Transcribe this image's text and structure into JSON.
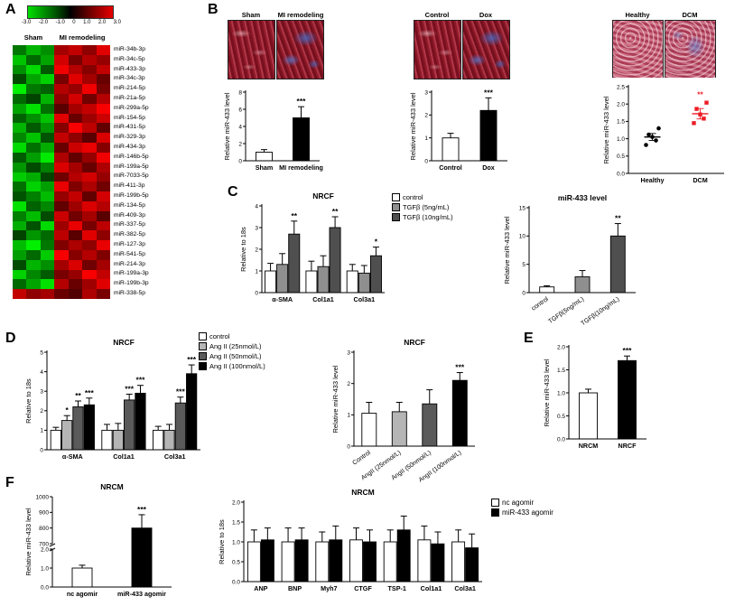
{
  "panels": {
    "A": "A",
    "B": "B",
    "C": "C",
    "D": "D",
    "E": "E",
    "F": "F"
  },
  "panelA": {
    "colorbar_ticks": [
      "-3.0",
      "-2.0",
      "-1.0",
      "0",
      "1.0",
      "2.0",
      "3.0"
    ],
    "col_groups": [
      "Sham",
      "MI remodeling"
    ],
    "row_labels": [
      "miR-34b-3p",
      "miR-34c-5p",
      "miR-433-3p",
      "miR-34c-3p",
      "miR-214-5p",
      "miR-21a-5p",
      "miR-299a-5p",
      "miR-154-5p",
      "miR-431-5p",
      "miR-329-3p",
      "miR-434-3p",
      "miR-146b-5p",
      "miR-199a-5p",
      "miR-7033-5p",
      "miR-411-3p",
      "miR-199b-5p",
      "miR-134-5p",
      "miR-409-3p",
      "miR-337-5p",
      "miR-382-5p",
      "miR-127-3p",
      "miR-541-5p",
      "miR-214-3p",
      "miR-199a-3p",
      "miR-199b-3p",
      "miR-338-5p"
    ],
    "matrix": [
      [
        -1.2,
        -2.0,
        -1.5,
        1.8,
        2.2,
        1.5,
        2.6
      ],
      [
        -2.2,
        -1.0,
        -1.8,
        2.4,
        1.2,
        2.0,
        1.6
      ],
      [
        -1.5,
        -2.5,
        -0.8,
        2.8,
        2.0,
        1.4,
        2.2
      ],
      [
        -0.6,
        -1.8,
        -2.4,
        1.2,
        2.6,
        1.8,
        1.0
      ],
      [
        -2.8,
        -1.2,
        -0.9,
        2.0,
        1.6,
        2.8,
        1.2
      ],
      [
        -1.0,
        -0.5,
        -2.0,
        1.5,
        2.4,
        1.1,
        2.0
      ],
      [
        -1.8,
        -2.6,
        -1.1,
        0.8,
        1.8,
        2.2,
        2.9
      ],
      [
        -0.9,
        -1.5,
        -2.2,
        2.6,
        1.0,
        1.7,
        2.3
      ],
      [
        -2.0,
        -0.8,
        -1.6,
        1.4,
        2.9,
        2.1,
        0.9
      ],
      [
        -1.4,
        -2.2,
        -0.7,
        2.2,
        1.5,
        0.8,
        2.5
      ],
      [
        -2.5,
        -1.1,
        -1.9,
        1.0,
        2.3,
        2.7,
        1.4
      ],
      [
        -0.8,
        -1.7,
        -2.7,
        1.9,
        0.9,
        1.6,
        2.8
      ],
      [
        -1.6,
        -0.6,
        -1.3,
        2.5,
        1.8,
        1.0,
        1.9
      ],
      [
        -2.3,
        -1.9,
        -0.5,
        1.1,
        2.0,
        2.4,
        1.6
      ],
      [
        -1.1,
        -2.4,
        -1.7,
        2.7,
        1.3,
        1.9,
        1.1
      ],
      [
        -0.7,
        -1.3,
        -2.1,
        1.6,
        2.2,
        0.9,
        2.4
      ],
      [
        -2.6,
        -0.9,
        -1.4,
        0.9,
        1.7,
        2.5,
        2.0
      ],
      [
        -1.3,
        -2.1,
        -0.6,
        2.3,
        1.1,
        1.8,
        0.8
      ],
      [
        -1.9,
        -0.7,
        -2.5,
        1.7,
        2.7,
        1.2,
        2.1
      ],
      [
        -0.5,
        -1.6,
        -1.0,
        2.1,
        0.8,
        2.6,
        1.5
      ],
      [
        -2.1,
        -2.8,
        -1.2,
        1.3,
        1.9,
        1.5,
        2.7
      ],
      [
        -1.7,
        -1.0,
        -2.3,
        2.9,
        1.4,
        2.0,
        1.3
      ],
      [
        -0.6,
        -2.0,
        -1.5,
        1.8,
        2.5,
        1.1,
        1.8
      ],
      [
        -2.4,
        -1.4,
        -0.8,
        1.2,
        1.6,
        2.9,
        2.2
      ],
      [
        -1.0,
        -1.8,
        -2.6,
        2.0,
        1.0,
        1.7,
        2.6
      ],
      [
        2.2,
        1.5,
        1.8,
        1.0,
        0.7,
        1.9,
        1.2
      ]
    ]
  },
  "panelB": {
    "groups": [
      [
        "Sham",
        "MI remodeling"
      ],
      [
        "Control",
        "Dox"
      ],
      [
        "Healthy",
        "DCM"
      ]
    ]
  },
  "legends": {
    "C": [
      {
        "label": "control",
        "color": "#ffffff"
      },
      {
        "label": "TGFβ (5ng/mL)",
        "color": "#8f8f8f"
      },
      {
        "label": "TGFβ (10ng/mL)",
        "color": "#4f4f4f"
      }
    ],
    "D": [
      {
        "label": "control",
        "color": "#ffffff"
      },
      {
        "label": "Ang II (25nmol/L)",
        "color": "#b5b5b5"
      },
      {
        "label": "Ang II (50nmol/L)",
        "color": "#5a5a5a"
      },
      {
        "label": "Ang II (100nmol/L)",
        "color": "#000000"
      }
    ],
    "F": [
      {
        "label": "nc agomir",
        "color": "#ffffff"
      },
      {
        "label": "miR-433 agomir",
        "color": "#000000"
      }
    ]
  },
  "chart_data": [
    {
      "id": "b1",
      "type": "bar",
      "ylabel": "Relative miR-433 level",
      "ylim": [
        0,
        8
      ],
      "bw": 18,
      "yticks": [
        [
          0,
          "0"
        ],
        [
          2,
          "2"
        ],
        [
          4,
          "4"
        ],
        [
          6,
          "6"
        ],
        [
          8,
          "8"
        ]
      ],
      "groups": [
        {
          "label": "Sham",
          "bars": [
            {
              "v": 1.0,
              "e": 0.3,
              "c": "#ffffff"
            }
          ]
        },
        {
          "label": "MI remodeling",
          "bars": [
            {
              "v": 5.0,
              "e": 1.3,
              "c": "#000000",
              "s": "***"
            }
          ]
        }
      ]
    },
    {
      "id": "b2",
      "type": "bar",
      "ylabel": "Relative miR-433 level",
      "ylim": [
        0,
        3
      ],
      "bw": 18,
      "yticks": [
        [
          0,
          "0"
        ],
        [
          1,
          "1"
        ],
        [
          2,
          "2"
        ],
        [
          3,
          "3"
        ]
      ],
      "groups": [
        {
          "label": "Control",
          "bars": [
            {
              "v": 1.0,
              "e": 0.2,
              "c": "#ffffff"
            }
          ]
        },
        {
          "label": "Dox",
          "bars": [
            {
              "v": 2.2,
              "e": 0.55,
              "c": "#000000",
              "s": "***"
            }
          ]
        }
      ]
    },
    {
      "id": "b3",
      "type": "scatter",
      "ylabel": "Relative miR-433 level",
      "ylim": [
        0,
        2.5
      ],
      "ml": 30,
      "yticks": [
        [
          0,
          "0.0"
        ],
        [
          0.5,
          "0.5"
        ],
        [
          1,
          "1.0"
        ],
        [
          1.5,
          "1.5"
        ],
        [
          2,
          "2.0"
        ],
        [
          2.5,
          "2.5"
        ]
      ],
      "groups": [
        {
          "label": "Healthy",
          "shape": "circle",
          "color": "#000000",
          "points": [
            0.82,
            0.95,
            1.05,
            1.12,
            1.3
          ],
          "mean": 1.05,
          "err": 0.1
        },
        {
          "label": "DCM",
          "shape": "square",
          "color": "#ed1c24",
          "points": [
            1.45,
            1.58,
            1.7,
            1.86,
            2.04
          ],
          "mean": 1.72,
          "err": 0.15,
          "s": "**",
          "s_color": "#ed1c24"
        }
      ]
    },
    {
      "id": "c-bars",
      "type": "bar",
      "title": "NRCF",
      "ylabel": "Relative to 18s",
      "ylim": [
        0,
        4
      ],
      "yticks": [
        [
          0,
          "0"
        ],
        [
          1,
          "1"
        ],
        [
          2,
          "2"
        ],
        [
          3,
          "3"
        ],
        [
          4,
          "4"
        ]
      ],
      "groups": [
        {
          "label": "α-SMA",
          "bars": [
            {
              "v": 1.0,
              "e": 0.35,
              "c": "#ffffff"
            },
            {
              "v": 1.3,
              "e": 0.5,
              "c": "#8f8f8f"
            },
            {
              "v": 2.7,
              "e": 0.6,
              "c": "#4f4f4f",
              "s": "**"
            }
          ]
        },
        {
          "label": "Col1a1",
          "bars": [
            {
              "v": 1.0,
              "e": 0.45,
              "c": "#ffffff"
            },
            {
              "v": 1.2,
              "e": 0.5,
              "c": "#8f8f8f"
            },
            {
              "v": 3.0,
              "e": 0.5,
              "c": "#4f4f4f",
              "s": "**"
            }
          ]
        },
        {
          "label": "Col3a1",
          "bars": [
            {
              "v": 1.0,
              "e": 0.3,
              "c": "#ffffff"
            },
            {
              "v": 0.9,
              "e": 0.35,
              "c": "#8f8f8f"
            },
            {
              "v": 1.7,
              "e": 0.4,
              "c": "#4f4f4f",
              "s": "*"
            }
          ]
        }
      ]
    },
    {
      "id": "c-mir",
      "type": "bar",
      "title": "miR-433 level",
      "ylabel": "Relative miR-433 level",
      "ylim": [
        0,
        15
      ],
      "rotate_x": 35,
      "bw": 16,
      "ml": 30,
      "yticks": [
        [
          0,
          "0"
        ],
        [
          5,
          "5"
        ],
        [
          10,
          "10"
        ],
        [
          15,
          "15"
        ]
      ],
      "groups": [
        {
          "label": "control",
          "bars": [
            {
              "v": 1.0,
              "e": 0.2,
              "c": "#ffffff"
            }
          ]
        },
        {
          "label": "TGFβ(5ng/mL)",
          "bars": [
            {
              "v": 2.8,
              "e": 1.1,
              "c": "#8f8f8f"
            }
          ]
        },
        {
          "label": "TGFβ(10ng/mL)",
          "bars": [
            {
              "v": 10.0,
              "e": 2.2,
              "c": "#4f4f4f",
              "s": "**"
            }
          ]
        }
      ]
    },
    {
      "id": "d-bars",
      "type": "bar",
      "title": "NRCF",
      "ylabel": "Relative to 18s",
      "ylim": [
        0,
        5
      ],
      "yticks": [
        [
          0,
          "0"
        ],
        [
          1,
          "1"
        ],
        [
          2,
          "2"
        ],
        [
          3,
          "3"
        ],
        [
          4,
          "4"
        ],
        [
          5,
          "5"
        ]
      ],
      "groups": [
        {
          "label": "α-SMA",
          "bars": [
            {
              "v": 1.0,
              "e": 0.15,
              "c": "#ffffff"
            },
            {
              "v": 1.5,
              "e": 0.25,
              "c": "#b5b5b5",
              "s": "*"
            },
            {
              "v": 2.2,
              "e": 0.3,
              "c": "#5a5a5a",
              "s": "**"
            },
            {
              "v": 2.3,
              "e": 0.35,
              "c": "#000000",
              "s": "***"
            }
          ]
        },
        {
          "label": "Col1a1",
          "bars": [
            {
              "v": 1.0,
              "e": 0.3,
              "c": "#ffffff"
            },
            {
              "v": 1.0,
              "e": 0.35,
              "c": "#b5b5b5"
            },
            {
              "v": 2.55,
              "e": 0.3,
              "c": "#5a5a5a",
              "s": "***"
            },
            {
              "v": 2.9,
              "e": 0.4,
              "c": "#000000",
              "s": "***"
            }
          ]
        },
        {
          "label": "Col3a1",
          "bars": [
            {
              "v": 1.0,
              "e": 0.2,
              "c": "#ffffff"
            },
            {
              "v": 1.0,
              "e": 0.3,
              "c": "#b5b5b5"
            },
            {
              "v": 2.4,
              "e": 0.3,
              "c": "#5a5a5a",
              "s": "***"
            },
            {
              "v": 3.9,
              "e": 0.45,
              "c": "#000000",
              "s": "***"
            }
          ]
        }
      ]
    },
    {
      "id": "d-mir",
      "type": "bar",
      "title": "NRCF",
      "ylabel": "Relative miR-433 level",
      "ylim": [
        0,
        3
      ],
      "rotate_x": 35,
      "bw": 16,
      "yticks": [
        [
          0,
          "0"
        ],
        [
          1,
          "1"
        ],
        [
          2,
          "2"
        ],
        [
          3,
          "3"
        ]
      ],
      "groups": [
        {
          "label": "Control",
          "bars": [
            {
              "v": 1.05,
              "e": 0.35,
              "c": "#ffffff"
            }
          ]
        },
        {
          "label": "AngII (25nmol/L)",
          "bars": [
            {
              "v": 1.1,
              "e": 0.3,
              "c": "#b5b5b5"
            }
          ]
        },
        {
          "label": "AngII (50nmol/L)",
          "bars": [
            {
              "v": 1.35,
              "e": 0.45,
              "c": "#5a5a5a"
            }
          ]
        },
        {
          "label": "AngII (100nmol/L)",
          "bars": [
            {
              "v": 2.1,
              "e": 0.25,
              "c": "#000000",
              "s": "***"
            }
          ]
        }
      ]
    },
    {
      "id": "e-bar",
      "type": "bar",
      "ylabel": "Relative miR-433 level",
      "ylim": [
        0,
        2
      ],
      "bw": 20,
      "ml": 30,
      "yticks": [
        [
          0,
          "0.0"
        ],
        [
          0.5,
          "0.5"
        ],
        [
          1,
          "1.0"
        ],
        [
          1.5,
          "1.5"
        ],
        [
          2,
          "2.0"
        ]
      ],
      "groups": [
        {
          "label": "NRCM",
          "bars": [
            {
              "v": 1.0,
              "e": 0.08,
              "c": "#ffffff"
            }
          ]
        },
        {
          "label": "NRCF",
          "bars": [
            {
              "v": 1.7,
              "e": 0.1,
              "c": "#000000",
              "s": "***"
            }
          ]
        }
      ]
    },
    {
      "id": "f-left",
      "type": "bar",
      "title": "NRCM",
      "ylabel": "Relative miR-433 level",
      "ylim": [
        0,
        1000
      ],
      "bw": 22,
      "ml": 32,
      "axis_break": {
        "lower_max": 2,
        "lower_ticks": [
          [
            0,
            "0.0"
          ],
          [
            1,
            "1.0"
          ],
          [
            2,
            "2.0"
          ]
        ],
        "upper_min": 700,
        "upper_max": 1000,
        "upper_ticks": [
          [
            700,
            "700"
          ],
          [
            800,
            "800"
          ],
          [
            900,
            "900"
          ],
          [
            1000,
            "1000"
          ]
        ]
      },
      "groups": [
        {
          "label": "nc agomir",
          "bars": [
            {
              "v": 1.0,
              "e": 0.15,
              "c": "#ffffff"
            }
          ]
        },
        {
          "label": "miR-433 agomir",
          "bars": [
            {
              "v": 800,
              "e": 85,
              "c": "#000000",
              "s": "***"
            }
          ]
        }
      ]
    },
    {
      "id": "f-right",
      "type": "bar",
      "title": "NRCM",
      "ylabel": "Relative to 18s",
      "ylim": [
        0,
        2
      ],
      "ml": 30,
      "yticks": [
        [
          0,
          "0.0"
        ],
        [
          0.5,
          "0.5"
        ],
        [
          1,
          "1.0"
        ],
        [
          1.5,
          "1.5"
        ],
        [
          2,
          "2.0"
        ]
      ],
      "groups": [
        {
          "label": "ANP",
          "bars": [
            {
              "v": 1.0,
              "e": 0.3,
              "c": "#ffffff"
            },
            {
              "v": 1.05,
              "e": 0.3,
              "c": "#000000"
            }
          ]
        },
        {
          "label": "BNP",
          "bars": [
            {
              "v": 1.0,
              "e": 0.35,
              "c": "#ffffff"
            },
            {
              "v": 1.05,
              "e": 0.3,
              "c": "#000000"
            }
          ]
        },
        {
          "label": "Myh7",
          "bars": [
            {
              "v": 1.0,
              "e": 0.25,
              "c": "#ffffff"
            },
            {
              "v": 1.05,
              "e": 0.35,
              "c": "#000000"
            }
          ]
        },
        {
          "label": "CTGF",
          "bars": [
            {
              "v": 1.05,
              "e": 0.3,
              "c": "#ffffff"
            },
            {
              "v": 1.0,
              "e": 0.3,
              "c": "#000000"
            }
          ]
        },
        {
          "label": "TSP-1",
          "bars": [
            {
              "v": 1.0,
              "e": 0.3,
              "c": "#ffffff"
            },
            {
              "v": 1.3,
              "e": 0.35,
              "c": "#000000"
            }
          ]
        },
        {
          "label": "Col1a1",
          "bars": [
            {
              "v": 1.05,
              "e": 0.35,
              "c": "#ffffff"
            },
            {
              "v": 0.95,
              "e": 0.3,
              "c": "#000000"
            }
          ]
        },
        {
          "label": "Col3a1",
          "bars": [
            {
              "v": 1.0,
              "e": 0.3,
              "c": "#ffffff"
            },
            {
              "v": 0.85,
              "e": 0.35,
              "c": "#000000"
            }
          ]
        }
      ]
    }
  ]
}
